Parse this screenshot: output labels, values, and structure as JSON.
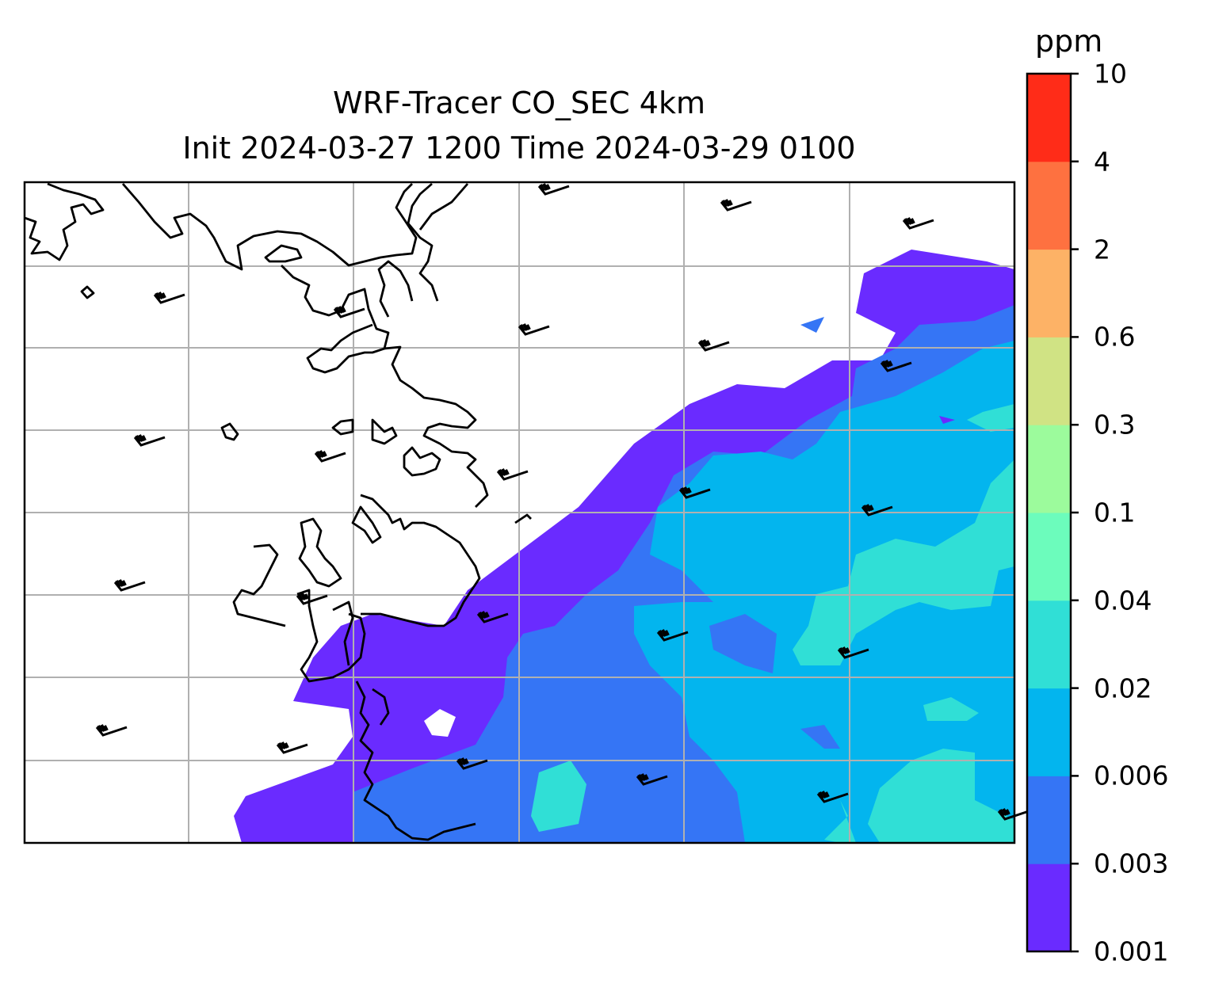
{
  "title": {
    "line1": "WRF-Tracer CO_SEC 4km",
    "line2": "Init 2024-03-27 1200 Time 2024-03-29 0100"
  },
  "colorbar": {
    "unit": "ppm",
    "levels": [
      "0.001",
      "0.003",
      "0.006",
      "0.02",
      "0.04",
      "0.1",
      "0.3",
      "0.6",
      "2",
      "4",
      "10"
    ],
    "colors": [
      "#6a2bff",
      "#3575f5",
      "#03b5ee",
      "#30dfd6",
      "#6cfcbc",
      "#9cfb9c",
      "#d0e384",
      "#fdb266",
      "#fe7140",
      "#ff2c18"
    ]
  },
  "map": {
    "gridlines": true,
    "gridline_color": "#b0b0b0",
    "coastline_color": "#000000",
    "wind_barb_color": "#000000"
  }
}
